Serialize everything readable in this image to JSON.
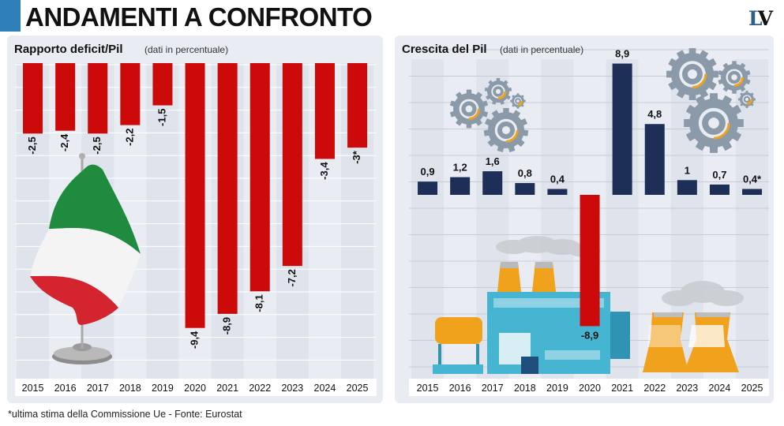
{
  "header": {
    "title": "ANDAMENTI A CONFRONTO",
    "logo": "LV"
  },
  "colors": {
    "deficit_bar": "#cc0a0a",
    "growth_bar": "#1d2f57",
    "panel_bg": "#e9edf3",
    "stripe": "#dfe4ec",
    "accent": "#2f7fb8"
  },
  "footnote": "*ultima stima della Commissione Ue - Fonte: Eurostat",
  "chart_data": [
    {
      "type": "bar",
      "title": "Rapporto deficit/Pil",
      "subtitle": "(dati in percentuale)",
      "categories": [
        "2015",
        "2016",
        "2017",
        "2018",
        "2019",
        "2020",
        "2021",
        "2022",
        "2023",
        "2024",
        "2025"
      ],
      "values": [
        -2.5,
        -2.4,
        -2.5,
        -2.2,
        -1.5,
        -9.4,
        -8.9,
        -8.1,
        -7.2,
        -3.4,
        -3
      ],
      "labels": [
        "-2,5",
        "-2,4",
        "-2,5",
        "-2,2",
        "-1,5",
        "-9,4",
        "-8,9",
        "-8,1",
        "-7,2",
        "-3,4",
        "-3*"
      ],
      "ylim": [
        -11.2,
        0
      ],
      "grid": true
    },
    {
      "type": "bar",
      "title": "Crescita del Pil",
      "subtitle": "(dati in percentuale)",
      "categories": [
        "2015",
        "2016",
        "2017",
        "2018",
        "2019",
        "2020",
        "2021",
        "2022",
        "2023",
        "2024",
        "2025"
      ],
      "values": [
        0.9,
        1.2,
        1.6,
        0.8,
        0.4,
        -8.9,
        8.9,
        4.8,
        1,
        0.7,
        0.4
      ],
      "labels": [
        "0,9",
        "1,2",
        "1,6",
        "0,8",
        "0,4",
        "-8,9",
        "8,9",
        "4,8",
        "1",
        "0,7",
        "0,4*"
      ],
      "ylim": [
        -12,
        9
      ],
      "grid": true
    }
  ]
}
